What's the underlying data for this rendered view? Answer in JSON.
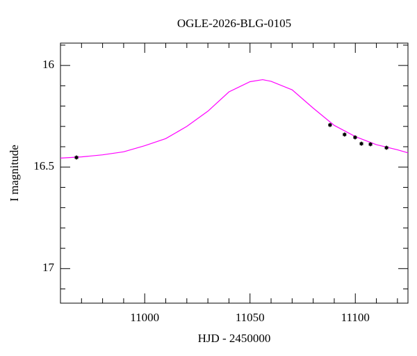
{
  "chart_data": {
    "type": "lightcurve",
    "title": "OGLE-2026-BLG-0105",
    "x_label": "HJD - 2450000",
    "y_label": "I magnitude",
    "xlim": [
      10960,
      11125
    ],
    "ylim": [
      15.89,
      17.17
    ],
    "y_inverted": true,
    "xticks": [
      11000,
      11050,
      11100
    ],
    "xminor": [
      10970,
      10980,
      10990,
      11010,
      11020,
      11030,
      11040,
      11060,
      11070,
      11080,
      11090,
      11110,
      11120
    ],
    "yticks": [
      16,
      16.5,
      17
    ],
    "yminor": [
      15.9,
      16.1,
      16.2,
      16.3,
      16.4,
      16.6,
      16.7,
      16.8,
      16.9,
      17.1
    ],
    "points": {
      "color": "#000000",
      "x": [
        10967.6,
        11088.0,
        11094.9,
        11099.9,
        11102.9,
        11107.2,
        11114.8
      ],
      "values": [
        16.453,
        16.293,
        16.34,
        16.354,
        16.385,
        16.388,
        16.405
      ],
      "errors": [
        0.01,
        0.01,
        0.01,
        0.01,
        0.01,
        0.01,
        0.01
      ]
    },
    "model": {
      "color": "#ff00ff",
      "x": [
        10960,
        10970,
        10980,
        10990,
        11000,
        11010,
        11020,
        11030,
        11040,
        11050,
        11056,
        11060,
        11070,
        11080,
        11090,
        11100,
        11110,
        11120,
        11125
      ],
      "values": [
        16.456,
        16.45,
        16.44,
        16.425,
        16.395,
        16.36,
        16.3,
        16.225,
        16.13,
        16.08,
        16.07,
        16.078,
        16.12,
        16.21,
        16.295,
        16.35,
        16.39,
        16.415,
        16.43
      ]
    }
  }
}
